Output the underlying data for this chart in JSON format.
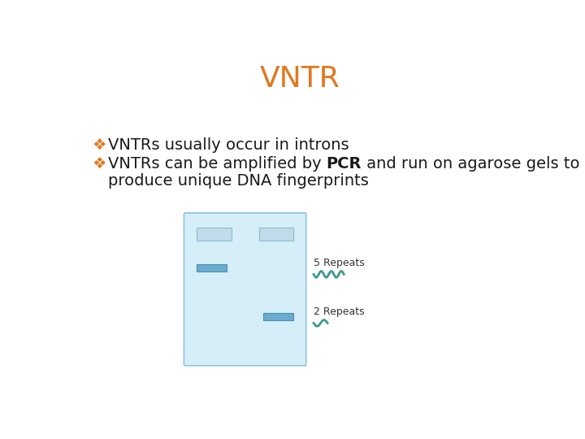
{
  "title": "VNTR",
  "title_color": "#E07820",
  "title_fontsize": 26,
  "bullet_symbol": "❖",
  "bullet_color": "#E07820",
  "bullet1": "VNTRs usually occur in introns",
  "bullet2_pre": "VNTRs can be amplified by ",
  "bullet2_bold": "PCR",
  "bullet2_post": " and run on agarose gels to",
  "bullet3": "produce unique DNA fingerprints",
  "text_color": "#1a1a1a",
  "text_fontsize": 14,
  "background_color": "#ffffff",
  "gel_bg": "#d6eef8",
  "gel_border": "#90c4dc",
  "band_top_color": "#c0dcea",
  "band_mid_color": "#6aabcf",
  "label_color": "#3a9a8a",
  "repeats5_label": "5 Repeats",
  "repeats2_label": "2 Repeats"
}
